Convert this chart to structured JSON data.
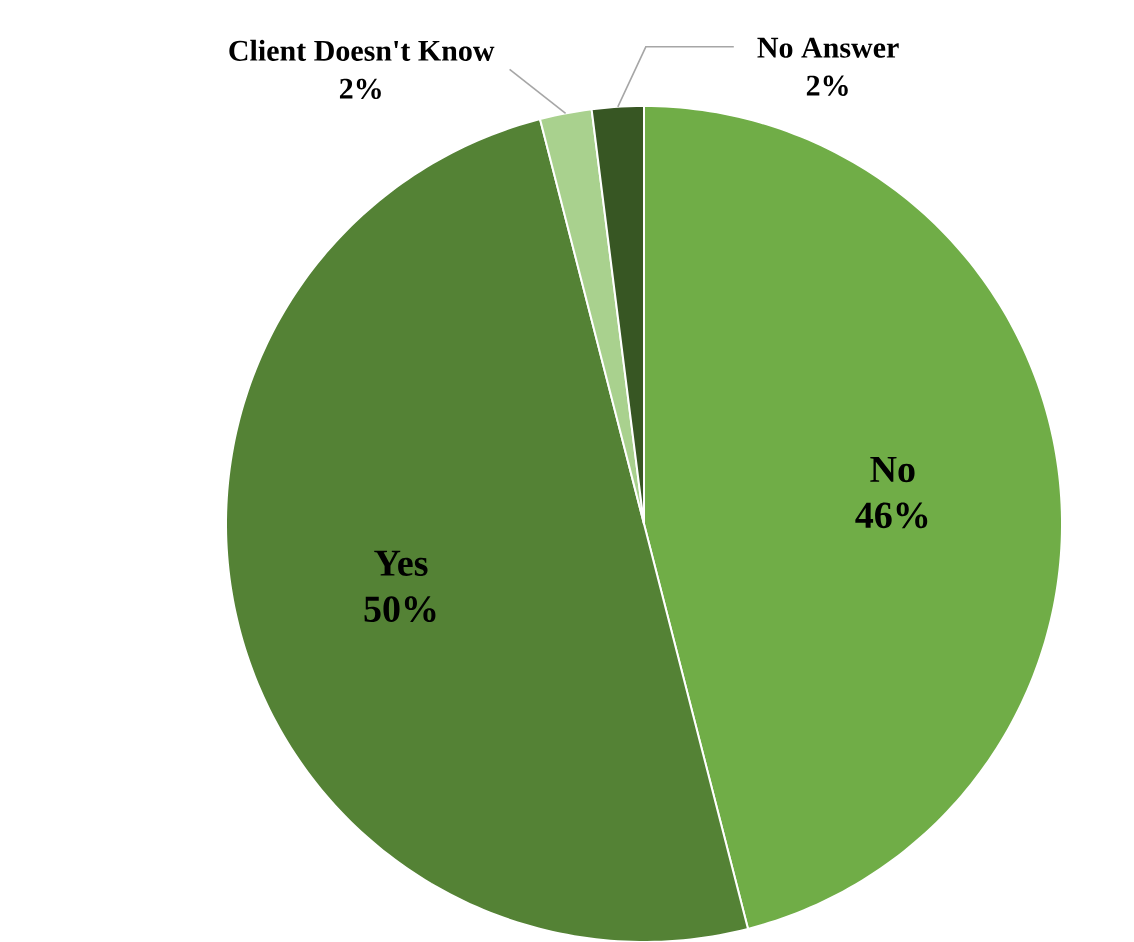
{
  "chart_data": {
    "type": "pie",
    "categories": [
      "No",
      "Yes",
      "Client Doesn't Know",
      "No Answer"
    ],
    "values": [
      46,
      50,
      2,
      2
    ],
    "value_labels": [
      "46%",
      "50%",
      "2%",
      "2%"
    ],
    "colors": [
      "#70ad47",
      "#548235",
      "#a9d18e",
      "#375623"
    ]
  }
}
